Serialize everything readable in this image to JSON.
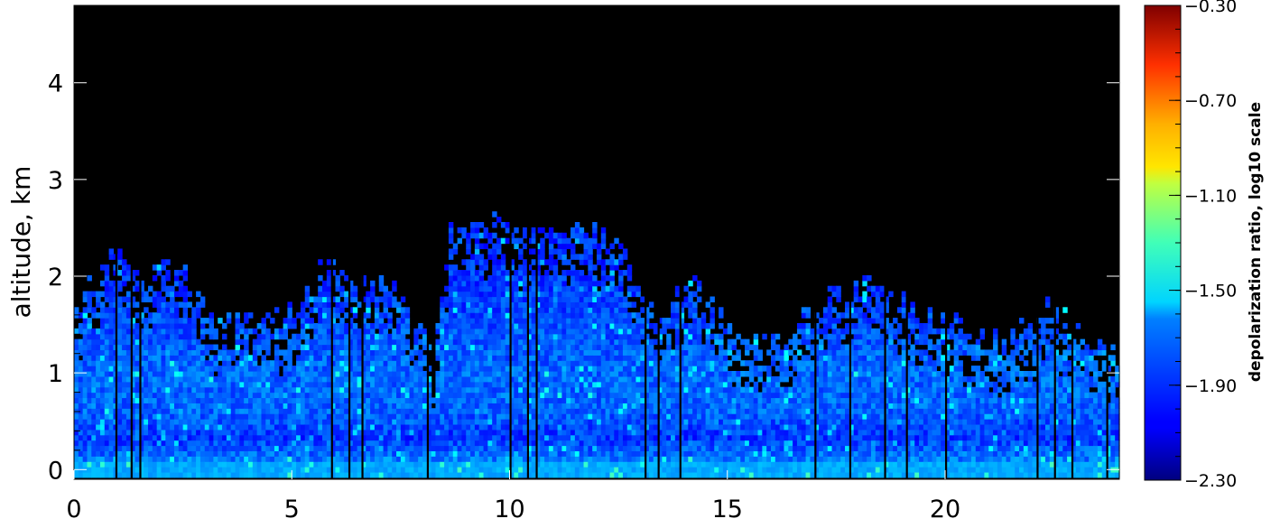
{
  "chart_data": {
    "type": "heatmap",
    "title": "",
    "xlabel": "",
    "ylabel": "altitude, km",
    "xlim": [
      0,
      24
    ],
    "ylim": [
      -0.1,
      4.8
    ],
    "x_ticks": [
      0,
      5,
      10,
      15,
      20
    ],
    "x_tick_labels": [
      "0",
      "5",
      "10",
      "15",
      "20"
    ],
    "y_ticks": [
      0,
      1,
      2,
      3,
      4
    ],
    "y_tick_labels": [
      "0",
      "1",
      "2",
      "3",
      "4"
    ],
    "background_color": "#000000",
    "colorbar": {
      "label": "depolarization ratio, log10 scale",
      "range": [
        -2.3,
        -0.3
      ],
      "ticks": [
        -2.3,
        -1.9,
        -1.5,
        -1.1,
        -0.7,
        -0.3
      ],
      "tick_labels": [
        "−2.30",
        "−1.90",
        "−1.50",
        "−1.10",
        "−0.70",
        "−0.30"
      ],
      "colormap": "jet"
    },
    "cloud_top_profile_km": [
      [
        0.0,
        1.6
      ],
      [
        0.6,
        2.15
      ],
      [
        1.0,
        2.15
      ],
      [
        1.5,
        1.9
      ],
      [
        2.2,
        2.15
      ],
      [
        3.2,
        1.55
      ],
      [
        4.2,
        1.5
      ],
      [
        5.2,
        1.65
      ],
      [
        5.8,
        2.2
      ],
      [
        6.3,
        1.9
      ],
      [
        7.2,
        1.9
      ],
      [
        8.2,
        1.2
      ],
      [
        8.6,
        2.45
      ],
      [
        9.4,
        2.55
      ],
      [
        10.6,
        2.4
      ],
      [
        12.3,
        2.45
      ],
      [
        13.3,
        1.6
      ],
      [
        14.2,
        1.9
      ],
      [
        15.2,
        1.3
      ],
      [
        16.3,
        1.35
      ],
      [
        17.2,
        1.8
      ],
      [
        18.3,
        1.9
      ],
      [
        19.3,
        1.6
      ],
      [
        20.3,
        1.5
      ],
      [
        21.3,
        1.25
      ],
      [
        22.3,
        1.65
      ],
      [
        23.3,
        1.35
      ],
      [
        24.0,
        1.15
      ]
    ],
    "mean_depolarization_log10_by_altitude": [
      {
        "altitude_km": 0.0,
        "value": -1.75
      },
      {
        "altitude_km": 0.3,
        "value": -1.95
      },
      {
        "altitude_km": 0.6,
        "value": -1.85
      },
      {
        "altitude_km": 1.0,
        "value": -1.85
      },
      {
        "altitude_km": 1.5,
        "value": -1.9
      },
      {
        "altitude_km": 2.0,
        "value": -1.95
      }
    ],
    "clear_columns_hours": [
      0.95,
      1.3,
      1.5,
      5.9,
      6.3,
      6.6,
      8.1,
      10.0,
      10.4,
      10.6,
      13.1,
      13.4,
      13.9,
      17.0,
      17.8,
      18.6,
      19.1,
      20.0,
      22.1,
      22.5,
      22.9,
      23.7
    ]
  }
}
